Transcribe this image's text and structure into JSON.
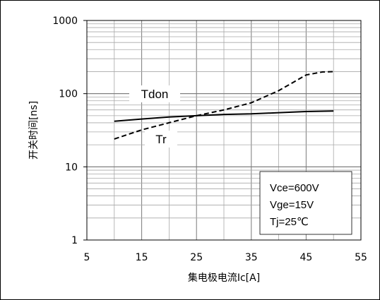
{
  "chart_data": {
    "type": "line",
    "title": "",
    "xlabel": "集电极电流Ic[A]",
    "ylabel": "开关时间[ns]",
    "xlim": [
      5,
      55
    ],
    "ylim": [
      1,
      1000
    ],
    "yscale": "log",
    "grid": true,
    "x_ticks": [
      "5",
      "15",
      "25",
      "35",
      "45",
      "55"
    ],
    "y_ticks": [
      "1",
      "10",
      "100",
      "1000"
    ],
    "series": [
      {
        "name": "Tdon",
        "style": "solid",
        "x": [
          10,
          15,
          20,
          25,
          30,
          35,
          40,
          45,
          50
        ],
        "y": [
          42,
          45,
          48,
          50,
          52,
          53,
          55,
          57,
          58
        ]
      },
      {
        "name": "Tr",
        "style": "dashed",
        "x": [
          10,
          15,
          20,
          25,
          30,
          35,
          40,
          45,
          48,
          50
        ],
        "y": [
          24,
          32,
          40,
          50,
          60,
          75,
          110,
          180,
          198,
          200
        ]
      }
    ],
    "annotations": [
      "Vce=600V",
      "Vge=15V",
      "Tj=25℃"
    ]
  }
}
